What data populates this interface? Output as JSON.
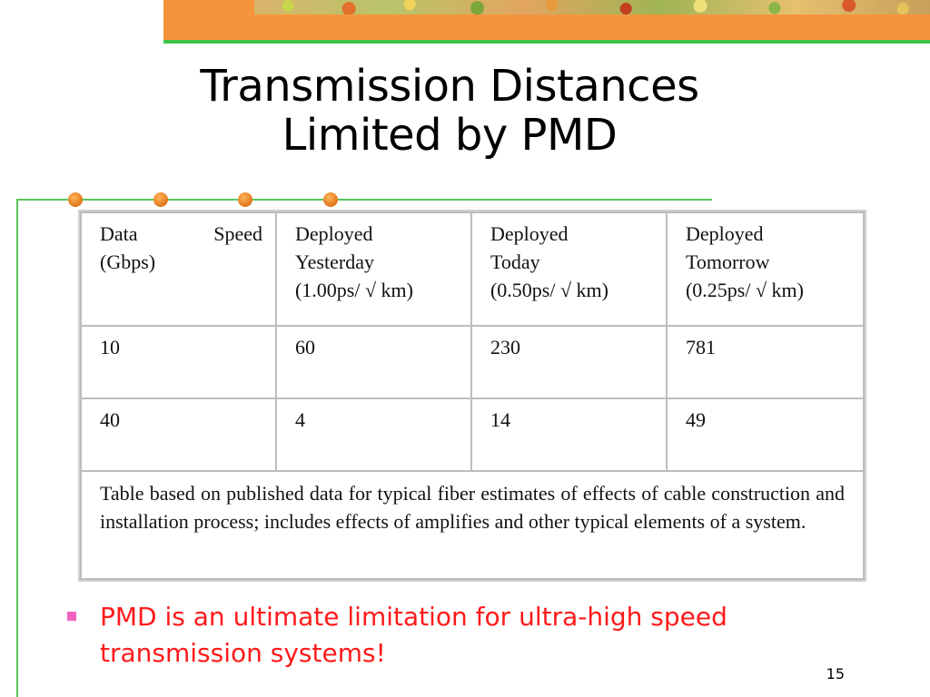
{
  "slide": {
    "title_line1": "Transmission Distances",
    "title_line2": "Limited by PMD",
    "page_number": "15"
  },
  "table": {
    "header": {
      "col1_a": "Data",
      "col1_b": "Speed",
      "col1_c": "(Gbps)",
      "col2_a": "Deployed",
      "col2_b": "Yesterday",
      "col2_c": "(1.00ps/ √ km)",
      "col3_a": "Deployed",
      "col3_b": "Today",
      "col3_c": "(0.50ps/ √ km)",
      "col4_a": "Deployed",
      "col4_b": "Tomorrow",
      "col4_c": "(0.25ps/ √ km)"
    },
    "rows": [
      {
        "speed": "10",
        "yesterday": "60",
        "today": "230",
        "tomorrow": "781"
      },
      {
        "speed": "40",
        "yesterday": "4",
        "today": "14",
        "tomorrow": "49"
      }
    ],
    "note": "Table based on published data for typical fiber estimates of effects of cable construction and installation process; includes effects of amplifies and other typical elements of a system."
  },
  "bullets": [
    {
      "text": "PMD is an ultimate limitation for ultra-high speed transmission systems!"
    }
  ],
  "colors": {
    "title": "#000000",
    "bullet_text": "#ff1a1a",
    "bullet_marker": "#f062c2",
    "accent_orange": "#f5943a",
    "accent_green": "#3fc24a"
  }
}
